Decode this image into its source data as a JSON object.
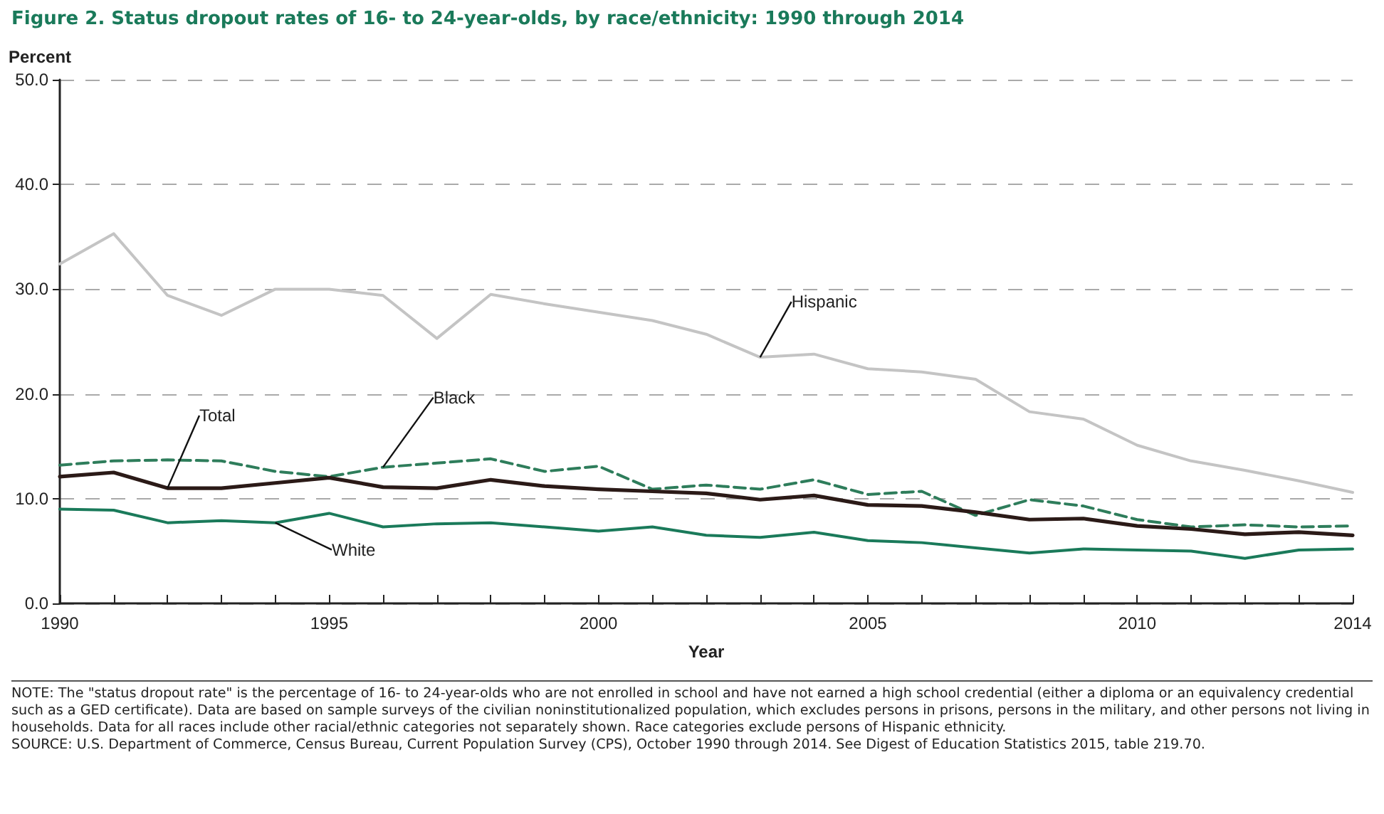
{
  "chart_data": {
    "type": "line",
    "title": "Figure 2.  Status dropout rates of 16- to 24-year-olds, by race/ethnicity: 1990 through 2014",
    "xlabel": "Year",
    "ylabel": "Percent",
    "x": [
      1990,
      1991,
      1992,
      1993,
      1994,
      1995,
      1996,
      1997,
      1998,
      1999,
      2000,
      2001,
      2002,
      2003,
      2004,
      2005,
      2006,
      2007,
      2008,
      2009,
      2010,
      2011,
      2012,
      2013,
      2014
    ],
    "series": [
      {
        "name": "Hispanic",
        "color": "#c4c4c4",
        "line_style": "solid",
        "values": [
          32.4,
          35.3,
          29.4,
          27.5,
          30.0,
          30.0,
          29.4,
          25.3,
          29.5,
          28.6,
          27.8,
          27.0,
          25.7,
          23.5,
          23.8,
          22.4,
          22.1,
          21.4,
          18.3,
          17.6,
          15.1,
          13.6,
          12.7,
          11.7,
          10.6
        ]
      },
      {
        "name": "Black",
        "color": "#2e7d5b",
        "line_style": "dashed",
        "values": [
          13.2,
          13.6,
          13.7,
          13.6,
          12.6,
          12.1,
          13.0,
          13.4,
          13.8,
          12.6,
          13.1,
          10.9,
          11.3,
          10.9,
          11.8,
          10.4,
          10.7,
          8.4,
          9.9,
          9.3,
          8.0,
          7.3,
          7.5,
          7.3,
          7.4
        ]
      },
      {
        "name": "Total",
        "color": "#2b1a17",
        "line_style": "solid",
        "values": [
          12.1,
          12.5,
          11.0,
          11.0,
          11.5,
          12.0,
          11.1,
          11.0,
          11.8,
          11.2,
          10.9,
          10.7,
          10.5,
          9.9,
          10.3,
          9.4,
          9.3,
          8.7,
          8.0,
          8.1,
          7.4,
          7.1,
          6.6,
          6.8,
          6.5
        ]
      },
      {
        "name": "White",
        "color": "#1a7a5a",
        "line_style": "solid",
        "values": [
          9.0,
          8.9,
          7.7,
          7.9,
          7.7,
          8.6,
          7.3,
          7.6,
          7.7,
          7.3,
          6.9,
          7.3,
          6.5,
          6.3,
          6.8,
          6.0,
          5.8,
          5.3,
          4.8,
          5.2,
          5.1,
          5.0,
          4.3,
          5.1,
          5.2
        ]
      }
    ],
    "xlim": [
      1990,
      2014
    ],
    "xticks": [
      1990,
      {
        "value": 1991,
        "label": null
      },
      {
        "value": 1992,
        "label": null
      },
      {
        "value": 1993,
        "label": null
      },
      {
        "value": 1994,
        "label": null
      },
      1995,
      {
        "value": 1996,
        "label": null
      },
      {
        "value": 1997,
        "label": null
      },
      {
        "value": 1998,
        "label": null
      },
      {
        "value": 1999,
        "label": null
      },
      2000,
      {
        "value": 2001,
        "label": null
      },
      {
        "value": 2002,
        "label": null
      },
      {
        "value": 2003,
        "label": null
      },
      {
        "value": 2004,
        "label": null
      },
      2005,
      {
        "value": 2006,
        "label": null
      },
      {
        "value": 2007,
        "label": null
      },
      {
        "value": 2008,
        "label": null
      },
      {
        "value": 2009,
        "label": null
      },
      2010,
      {
        "value": 2011,
        "label": null
      },
      {
        "value": 2012,
        "label": null
      },
      {
        "value": 2013,
        "label": null
      },
      2014
    ],
    "ylim": [
      0,
      50
    ],
    "yticks": [
      {
        "value": 0,
        "label": "0.0"
      },
      {
        "value": 10,
        "label": "10.0"
      },
      {
        "value": 20,
        "label": "20.0"
      },
      {
        "value": 30,
        "label": "30.0"
      },
      {
        "value": 40,
        "label": "40.0"
      },
      {
        "value": 50,
        "label": "50.0"
      }
    ],
    "grid": "y",
    "legend": false,
    "marker": "none",
    "annotations": [
      "NOTE: The \"status dropout rate\" is the percentage of 16- to 24-year-olds who are not enrolled in school and have not earned a high school credential (either a diploma or an equivalency credential such as a GED certificate). Data are based on sample surveys of the civilian noninstitutionalized population, which excludes persons in prisons, persons in the military, and other persons not living in households. Data for all races include other racial/ethnic categories not separately shown. Race categories exclude persons of Hispanic ethnicity.",
      "SOURCE: U.S. Department of Commerce, Census Bureau, Current Population Survey (CPS), October 1990 through 2014. See Digest of Education Statistics 2015, table 219.70."
    ]
  }
}
